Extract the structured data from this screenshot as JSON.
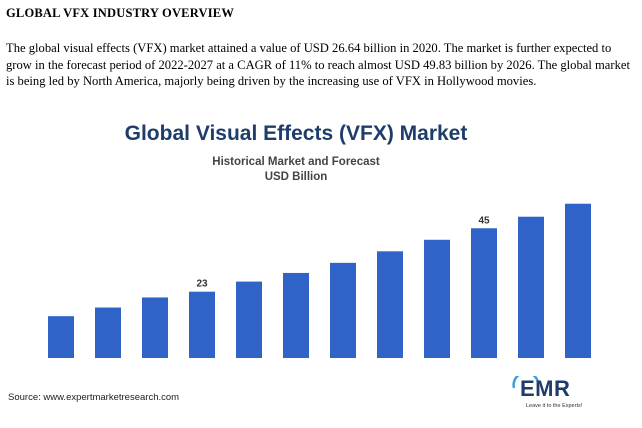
{
  "report": {
    "heading": "GLOBAL VFX INDUSTRY OVERVIEW",
    "paragraph": "The global visual effects (VFX) market attained a value of USD 26.64 billion in 2020. The market is further expected to grow in the forecast period of 2022-2027 at a CAGR of 11% to reach almost USD 49.83 billion by 2026. The global market is being led by North America, majorly being driven by the increasing use of VFX in Hollywood movies."
  },
  "chart_data": {
    "type": "bar",
    "title": "Global Visual Effects (VFX) Market",
    "subtitle": "Historical Market and Forecast",
    "unit_label": "USD Billion",
    "values": [
      14.5,
      17.5,
      21,
      23,
      26.5,
      29.5,
      33,
      37,
      41,
      45,
      49,
      53.5
    ],
    "data_labels": [
      {
        "index": 3,
        "text": "23"
      },
      {
        "index": 9,
        "text": "45"
      }
    ],
    "ylim": [
      0,
      60
    ],
    "bar_color": "#2f63c7",
    "grid": false,
    "axes_visible": false
  },
  "footer": {
    "source": "Source: www.expertmarketresearch.com",
    "logo_text": "EMR",
    "logo_tagline": "Leave it to the Experts!"
  },
  "colors": {
    "title": "#1f3d6b",
    "subtitle": "#444444",
    "logo_accent": "#3aa0dc"
  }
}
